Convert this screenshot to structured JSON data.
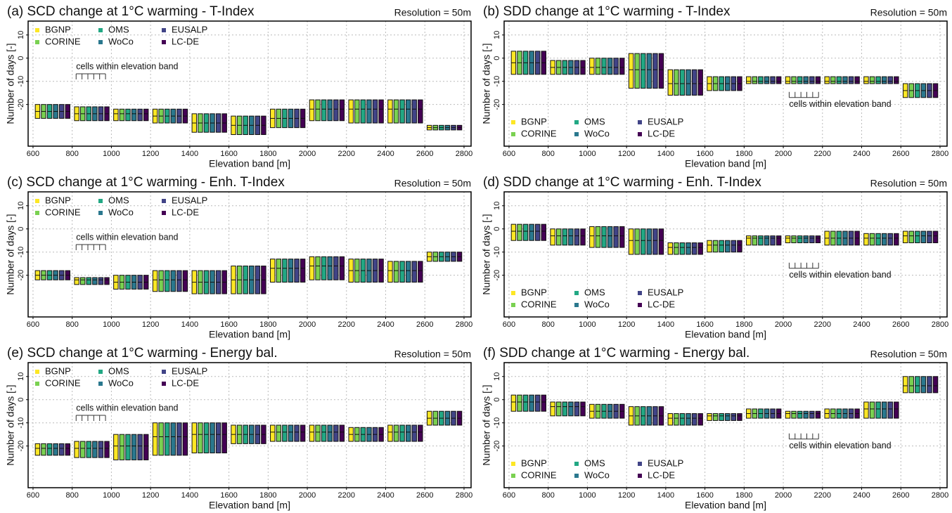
{
  "chart_data": [
    {
      "type": "box",
      "title": "(a) SCD change at 1°C warming - T-Index",
      "resolution": "Resolution = 50m",
      "x_label": "Elevation band [m]",
      "y_label": "Number of days [-]",
      "annotation": "cells within elevation band",
      "x": [
        600,
        800,
        1000,
        1200,
        1400,
        1600,
        1800,
        2000,
        2200,
        2400,
        2600
      ],
      "low": [
        -26,
        -27,
        -27,
        -28,
        -32,
        -33,
        -30,
        -27,
        -28,
        -28,
        -31
      ],
      "median": [
        -23,
        -24,
        -24,
        -25,
        -28,
        -29,
        -26,
        -22,
        -22,
        -22,
        -30
      ],
      "high": [
        -20,
        -21,
        -22,
        -22,
        -24,
        -25,
        -22,
        -18,
        -18,
        -18,
        -29
      ],
      "series": [
        {
          "name": "BGNP",
          "color": "#fde725"
        },
        {
          "name": "CORINE",
          "color": "#7ad151"
        },
        {
          "name": "OMS",
          "color": "#22a884"
        },
        {
          "name": "WoCo",
          "color": "#2a788e"
        },
        {
          "name": "EUSALP",
          "color": "#414487"
        },
        {
          "name": "LC-DE",
          "color": "#440154"
        }
      ],
      "xlim": [
        575,
        2836
      ],
      "xticks": [
        600,
        800,
        1000,
        1200,
        1400,
        1600,
        1800,
        2000,
        2200,
        2400,
        2600,
        2800
      ],
      "ylim": [
        -38,
        16
      ],
      "yticks": [
        -20,
        -10,
        0,
        10
      ],
      "grid": true,
      "legend": "upper left"
    },
    {
      "type": "box",
      "title": "(b) SDD change at 1°C warming - T-Index",
      "resolution": "Resolution = 50m",
      "x_label": "Elevation band [m]",
      "y_label": "Number of days [-]",
      "annotation": "cells within elevation band",
      "x": [
        600,
        800,
        1000,
        1200,
        1400,
        1600,
        1800,
        2000,
        2200,
        2400,
        2600
      ],
      "low": [
        -7,
        -7,
        -7,
        -13,
        -16,
        -14,
        -11,
        -11,
        -11,
        -11,
        -17
      ],
      "median": [
        -2,
        -4,
        -4,
        -5,
        -11,
        -11,
        -10,
        -10,
        -10,
        -10,
        -14
      ],
      "high": [
        3,
        -1,
        0,
        2,
        -5,
        -8,
        -8,
        -8,
        -8,
        -8,
        -11
      ],
      "series": [
        {
          "name": "BGNP",
          "color": "#fde725"
        },
        {
          "name": "CORINE",
          "color": "#7ad151"
        },
        {
          "name": "OMS",
          "color": "#22a884"
        },
        {
          "name": "WoCo",
          "color": "#2a788e"
        },
        {
          "name": "EUSALP",
          "color": "#414487"
        },
        {
          "name": "LC-DE",
          "color": "#440154"
        }
      ],
      "xlim": [
        575,
        2836
      ],
      "xticks": [
        600,
        800,
        1000,
        1200,
        1400,
        1600,
        1800,
        2000,
        2200,
        2400,
        2600,
        2800
      ],
      "ylim": [
        -38,
        16
      ],
      "yticks": [
        -20,
        -10,
        0,
        10
      ],
      "grid": true,
      "legend": "lower left"
    },
    {
      "type": "box",
      "title": "(c) SCD change at 1°C warming - Enh. T-Index",
      "resolution": "Resolution = 50m",
      "x_label": "Elevation band [m]",
      "y_label": "Number of days [-]",
      "annotation": "cells within elevation band",
      "x": [
        600,
        800,
        1000,
        1200,
        1400,
        1600,
        1800,
        2000,
        2200,
        2400,
        2600
      ],
      "low": [
        -22,
        -24,
        -26,
        -27,
        -28,
        -28,
        -23,
        -22,
        -23,
        -23,
        -14
      ],
      "median": [
        -20,
        -22,
        -23,
        -22,
        -23,
        -22,
        -17,
        -16,
        -18,
        -18,
        -12
      ],
      "high": [
        -18,
        -21,
        -20,
        -18,
        -18,
        -16,
        -13,
        -12,
        -13,
        -14,
        -10
      ],
      "series": [
        {
          "name": "BGNP",
          "color": "#fde725"
        },
        {
          "name": "CORINE",
          "color": "#7ad151"
        },
        {
          "name": "OMS",
          "color": "#22a884"
        },
        {
          "name": "WoCo",
          "color": "#2a788e"
        },
        {
          "name": "EUSALP",
          "color": "#414487"
        },
        {
          "name": "LC-DE",
          "color": "#440154"
        }
      ],
      "xlim": [
        575,
        2836
      ],
      "xticks": [
        600,
        800,
        1000,
        1200,
        1400,
        1600,
        1800,
        2000,
        2200,
        2400,
        2600,
        2800
      ],
      "ylim": [
        -38,
        16
      ],
      "yticks": [
        -20,
        -10,
        0,
        10
      ],
      "grid": true,
      "legend": "upper left"
    },
    {
      "type": "box",
      "title": "(d) SDD change at 1°C warming - Enh. T-Index",
      "resolution": "Resolution = 50m",
      "x_label": "Elevation band [m]",
      "y_label": "Number of days [-]",
      "annotation": "cells within elevation band",
      "x": [
        600,
        800,
        1000,
        1200,
        1400,
        1600,
        1800,
        2000,
        2200,
        2400,
        2600
      ],
      "low": [
        -5,
        -7,
        -8,
        -11,
        -11,
        -10,
        -7,
        -6,
        -7,
        -7,
        -6
      ],
      "median": [
        -1,
        -3,
        -3,
        -5,
        -8,
        -7,
        -4,
        -4,
        -4,
        -4,
        -3
      ],
      "high": [
        2,
        0,
        1,
        0,
        -6,
        -5,
        -3,
        -3,
        -1,
        -2,
        -1
      ],
      "series": [
        {
          "name": "BGNP",
          "color": "#fde725"
        },
        {
          "name": "CORINE",
          "color": "#7ad151"
        },
        {
          "name": "OMS",
          "color": "#22a884"
        },
        {
          "name": "WoCo",
          "color": "#2a788e"
        },
        {
          "name": "EUSALP",
          "color": "#414487"
        },
        {
          "name": "LC-DE",
          "color": "#440154"
        }
      ],
      "xlim": [
        575,
        2836
      ],
      "xticks": [
        600,
        800,
        1000,
        1200,
        1400,
        1600,
        1800,
        2000,
        2200,
        2400,
        2600,
        2800
      ],
      "ylim": [
        -38,
        16
      ],
      "yticks": [
        -20,
        -10,
        0,
        10
      ],
      "grid": true,
      "legend": "lower left"
    },
    {
      "type": "box",
      "title": "(e) SCD change at 1°C warming - Energy bal.",
      "resolution": "Resolution = 50m",
      "x_label": "Elevation band [m]",
      "y_label": "Number of days [-]",
      "annotation": "cells within elevation band",
      "x": [
        600,
        800,
        1000,
        1200,
        1400,
        1600,
        1800,
        2000,
        2200,
        2400,
        2600
      ],
      "low": [
        -24,
        -25,
        -26,
        -24,
        -23,
        -19,
        -18,
        -18,
        -18,
        -18,
        -11
      ],
      "median": [
        -21,
        -21,
        -20,
        -16,
        -15,
        -15,
        -14,
        -14,
        -15,
        -14,
        -8
      ],
      "high": [
        -19,
        -18,
        -15,
        -10,
        -10,
        -11,
        -11,
        -11,
        -12,
        -11,
        -5
      ],
      "series": [
        {
          "name": "BGNP",
          "color": "#fde725"
        },
        {
          "name": "CORINE",
          "color": "#7ad151"
        },
        {
          "name": "OMS",
          "color": "#22a884"
        },
        {
          "name": "WoCo",
          "color": "#2a788e"
        },
        {
          "name": "EUSALP",
          "color": "#414487"
        },
        {
          "name": "LC-DE",
          "color": "#440154"
        }
      ],
      "xlim": [
        575,
        2836
      ],
      "xticks": [
        600,
        800,
        1000,
        1200,
        1400,
        1600,
        1800,
        2000,
        2200,
        2400,
        2600,
        2800
      ],
      "ylim": [
        -38,
        16
      ],
      "yticks": [
        -20,
        -10,
        0,
        10
      ],
      "grid": true,
      "legend": "upper left"
    },
    {
      "type": "box",
      "title": "(f) SDD change at 1°C warming - Energy bal.",
      "resolution": "Resolution = 50m",
      "x_label": "Elevation band [m]",
      "y_label": "Number of days [-]",
      "annotation": "cells within elevation band",
      "x": [
        600,
        800,
        1000,
        1200,
        1400,
        1600,
        1800,
        2000,
        2200,
        2400,
        2600
      ],
      "low": [
        -5,
        -7,
        -8,
        -11,
        -11,
        -9,
        -8,
        -8,
        -8,
        -8,
        3
      ],
      "median": [
        -1,
        -3,
        -5,
        -7,
        -8,
        -7,
        -6,
        -6,
        -6,
        -4,
        6
      ],
      "high": [
        2,
        -1,
        -2,
        -3,
        -6,
        -6,
        -4,
        -5,
        -4,
        -1,
        10
      ],
      "series": [
        {
          "name": "BGNP",
          "color": "#fde725"
        },
        {
          "name": "CORINE",
          "color": "#7ad151"
        },
        {
          "name": "OMS",
          "color": "#22a884"
        },
        {
          "name": "WoCo",
          "color": "#2a788e"
        },
        {
          "name": "EUSALP",
          "color": "#414487"
        },
        {
          "name": "LC-DE",
          "color": "#440154"
        }
      ],
      "xlim": [
        575,
        2836
      ],
      "xticks": [
        600,
        800,
        1000,
        1200,
        1400,
        1600,
        1800,
        2000,
        2200,
        2400,
        2600,
        2800
      ],
      "ylim": [
        -38,
        16
      ],
      "yticks": [
        -20,
        -10,
        0,
        10
      ],
      "grid": true,
      "legend": "lower left"
    }
  ]
}
